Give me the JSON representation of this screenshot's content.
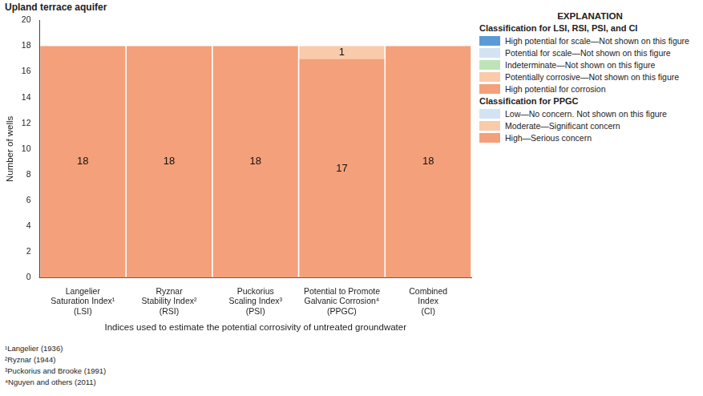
{
  "chart_data": {
    "type": "bar",
    "title": "Upland terrace aquifer",
    "x_label": "Indices used to estimate the potential corrosivity of untreated groundwater",
    "y_label": "Number of wells",
    "categories": [
      [
        "Langelier",
        "Saturation Index¹",
        "(LSI)"
      ],
      [
        "Ryznar",
        "Stability Index²",
        "(RSI)"
      ],
      [
        "Puckorius",
        "Scaling Index³",
        "(PSI)"
      ],
      [
        "Potential to Promote",
        "Galvanic Corrosion⁴",
        "(PPGC)"
      ],
      [
        "Combined",
        "Index",
        "(CI)"
      ]
    ],
    "series": [
      {
        "name": "High potential for corrosion",
        "color": "#f4a07a",
        "values": [
          18,
          18,
          18,
          17,
          18
        ]
      },
      {
        "name": "Moderate—Significant concern",
        "color": "#f9cbab",
        "values": [
          0,
          0,
          0,
          1,
          0
        ]
      }
    ],
    "stacked": true,
    "data_labels": true,
    "grid": false,
    "ylim": [
      0,
      20
    ],
    "yticks": [
      0,
      2,
      4,
      6,
      8,
      10,
      12,
      14,
      16,
      18,
      20
    ],
    "explanation": {
      "title": "EXPLANATION",
      "groups": [
        {
          "title": "Classification for LSI, RSI, PSI, and CI",
          "items": [
            {
              "label": "High potential for scale—Not shown on this figure",
              "color": "#5b9bd5"
            },
            {
              "label": "Potential for scale—Not shown on this figure",
              "color": "#d3e3f3"
            },
            {
              "label": "Indeterminate—Not shown on this figure",
              "color": "#bfe3b8"
            },
            {
              "label": "Potentially corrosive—Not shown on this figure",
              "color": "#f9cbab"
            },
            {
              "label": "High potential for corrosion",
              "color": "#f4a07a"
            }
          ]
        },
        {
          "title": "Classification for PPGC",
          "items": [
            {
              "label": "Low—No concern. Not shown on this figure",
              "color": "#d3e3f3"
            },
            {
              "label": "Moderate—Significant concern",
              "color": "#f9cbab"
            },
            {
              "label": "High—Serious concern",
              "color": "#f4a07a"
            }
          ]
        }
      ]
    },
    "footnotes": [
      "¹Langelier (1936)",
      "²Ryznar (1944)",
      "³Puckorius and Brooke (1991)",
      "⁴Nguyen and others (2011)"
    ]
  }
}
